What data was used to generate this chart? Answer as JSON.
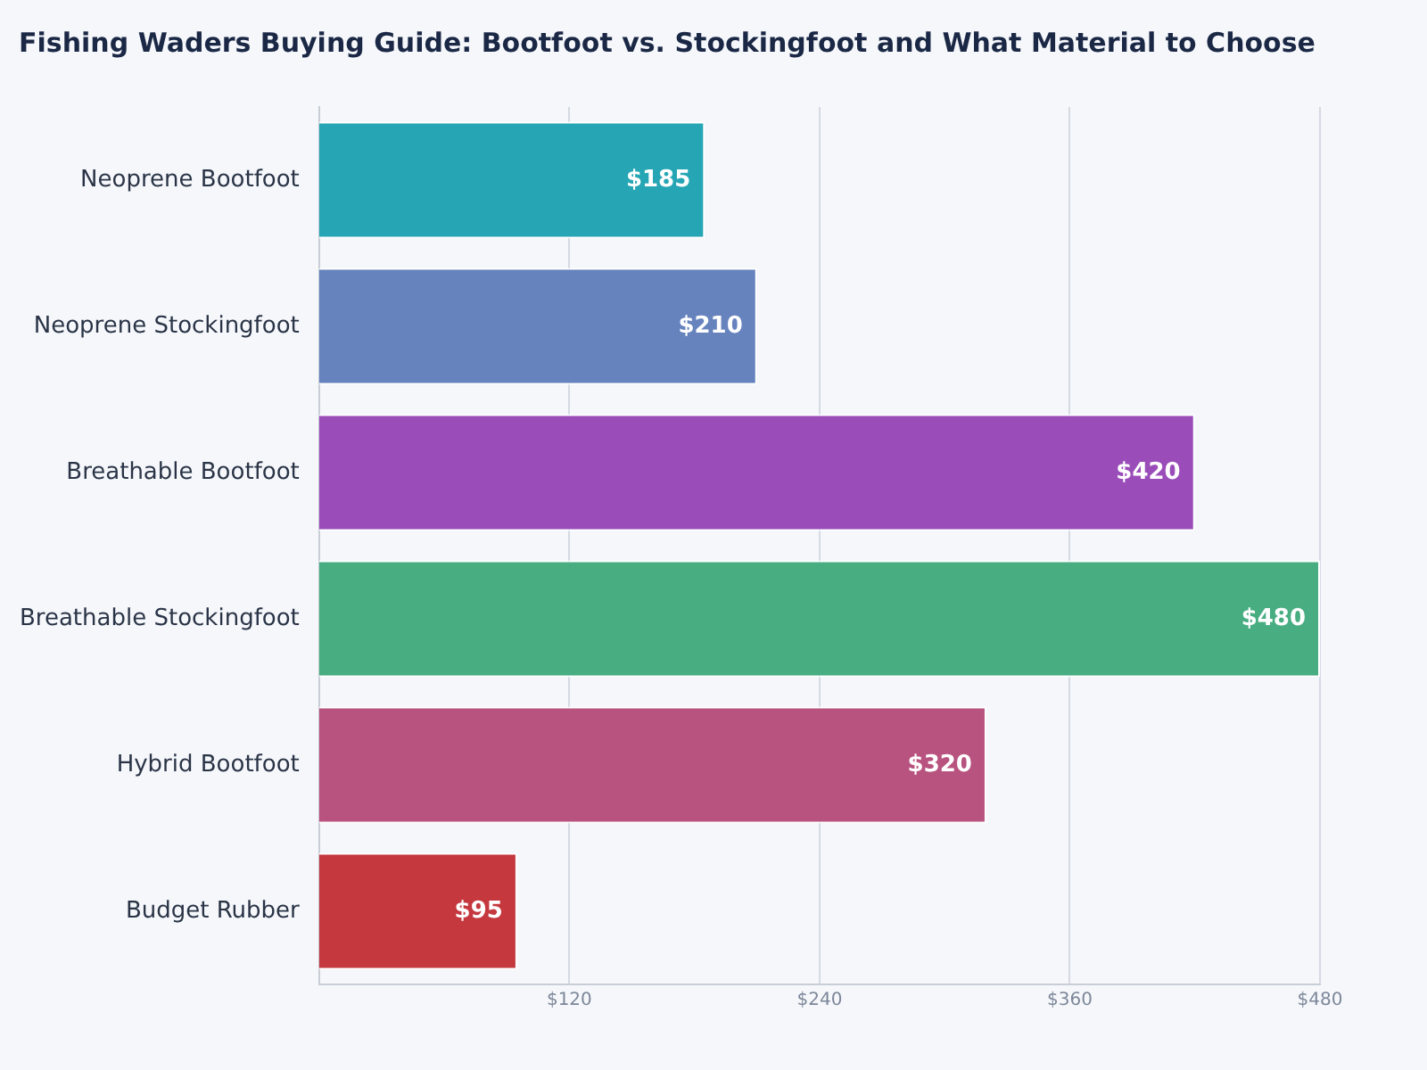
{
  "chart_data": {
    "type": "bar",
    "orientation": "horizontal",
    "title": "Fishing Waders Buying Guide: Bootfoot vs. Stockingfoot and What Material to Choose",
    "categories": [
      "Neoprene Bootfoot",
      "Neoprene Stockingfoot",
      "Breathable Bootfoot",
      "Breathable Stockingfoot",
      "Hybrid Bootfoot",
      "Budget Rubber"
    ],
    "values": [
      185,
      210,
      420,
      480,
      320,
      95
    ],
    "colors": [
      "#26a6b4",
      "#6683be",
      "#9a4db9",
      "#48ae82",
      "#b8527f",
      "#c4383e"
    ],
    "value_labels": [
      "$185",
      "$210",
      "$420",
      "$480",
      "$320",
      "$95"
    ],
    "xlim": [
      0,
      480
    ],
    "xticks": [
      {
        "value": 120,
        "label": "$120"
      },
      {
        "value": 240,
        "label": "$240"
      },
      {
        "value": 360,
        "label": "$360"
      },
      {
        "value": 480,
        "label": "$480"
      }
    ],
    "grid": "x",
    "legend": false
  }
}
